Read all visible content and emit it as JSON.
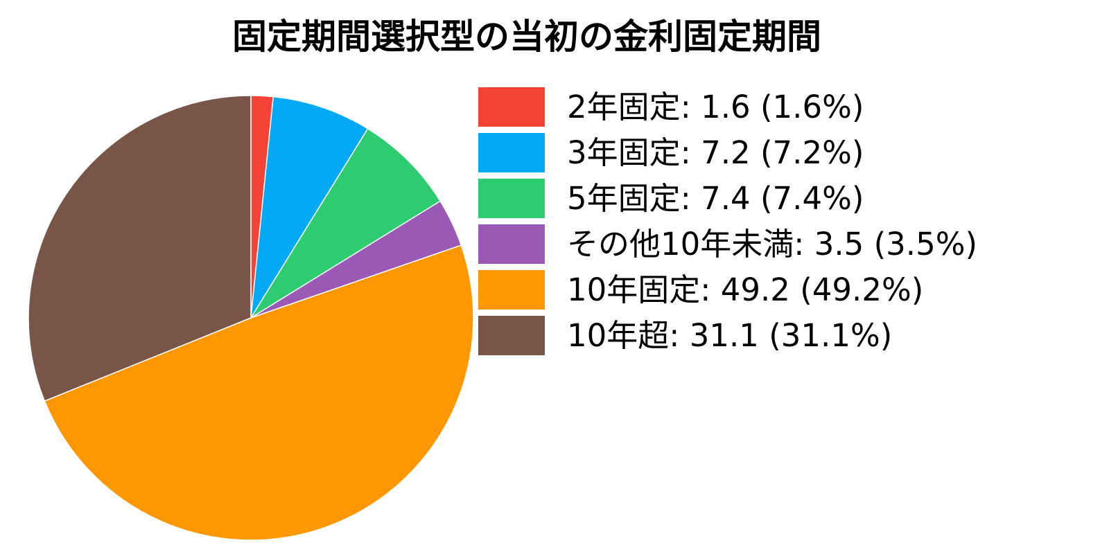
{
  "chart_data": {
    "type": "pie",
    "title": "固定期間選択型の当初の金利固定期間",
    "start_angle": "top",
    "direction": "clockwise",
    "legend_position": "right",
    "slices": [
      {
        "label": "2年固定",
        "value": 1.6,
        "percent": "1.6%",
        "color": "#f44336",
        "legend_text": "2年固定: 1.6 (1.6%)"
      },
      {
        "label": "3年固定",
        "value": 7.2,
        "percent": "7.2%",
        "color": "#03a9f4",
        "legend_text": "3年固定: 7.2 (7.2%)"
      },
      {
        "label": "5年固定",
        "value": 7.4,
        "percent": "7.4%",
        "color": "#2ecc71",
        "legend_text": "5年固定: 7.4 (7.4%)"
      },
      {
        "label": "その他10年未満",
        "value": 3.5,
        "percent": "3.5%",
        "color": "#9b59b6",
        "legend_text": "その他10年未満: 3.5 (3.5%)"
      },
      {
        "label": "10年固定",
        "value": 49.2,
        "percent": "49.2%",
        "color": "#ff9800",
        "legend_text": "10年固定: 49.2 (49.2%)"
      },
      {
        "label": "10年超",
        "value": 31.1,
        "percent": "31.1%",
        "color": "#795548",
        "legend_text": "10年超: 31.1 (31.1%)"
      }
    ]
  }
}
